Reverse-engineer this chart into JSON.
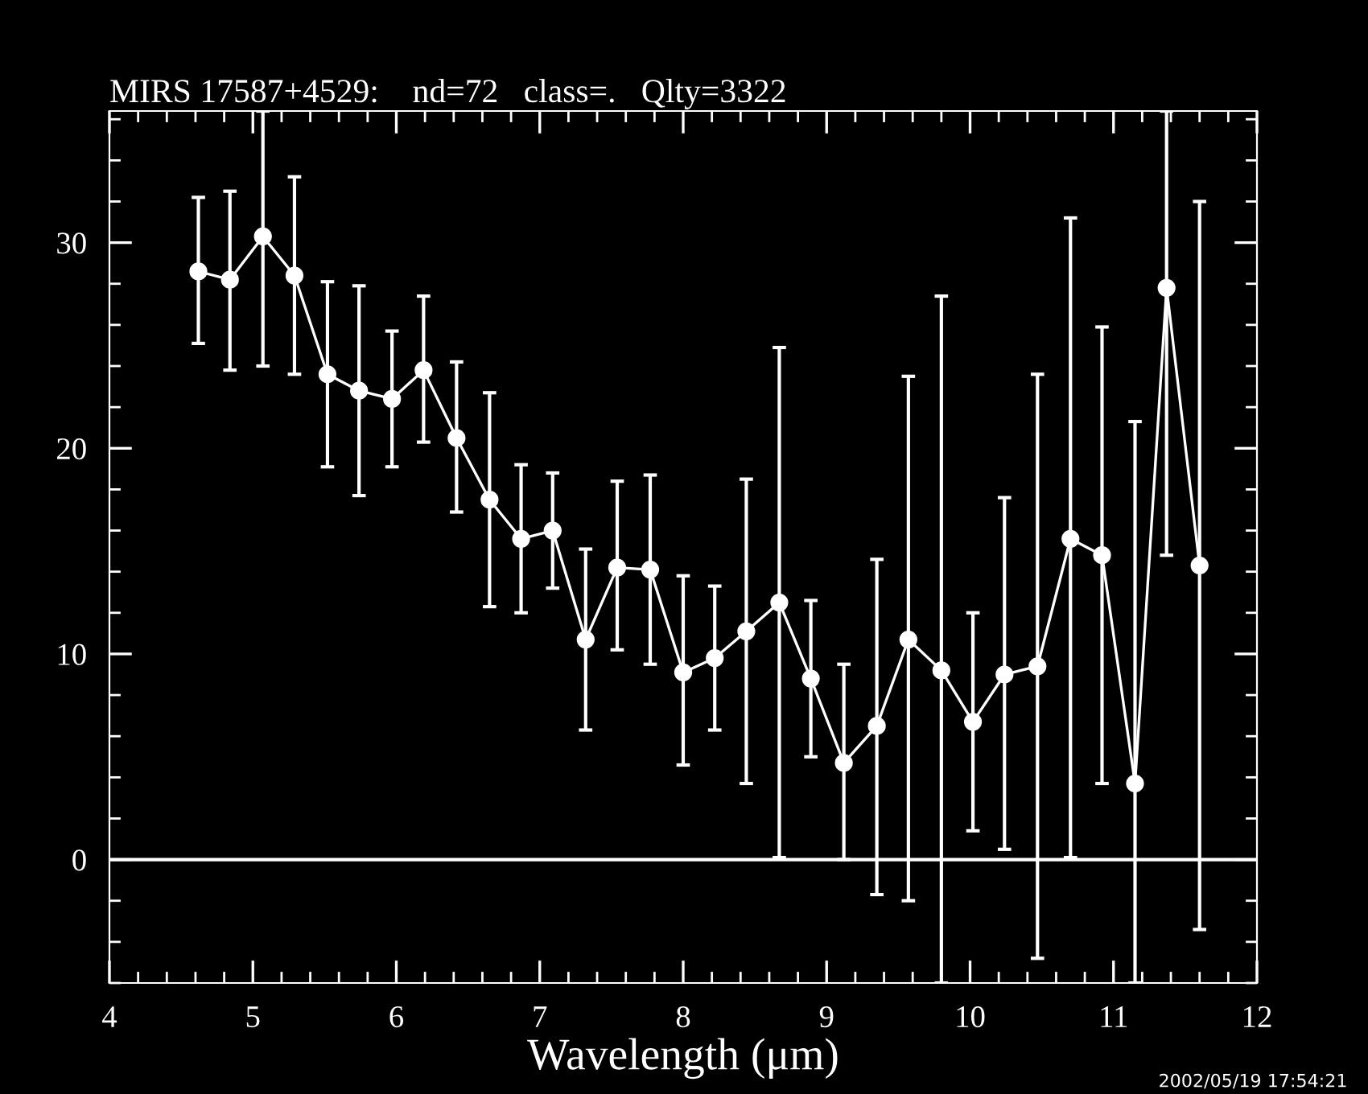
{
  "chart_data": {
    "type": "line",
    "title": "MIRS 17587+4529:    nd=72   class=.   Qlty=3322",
    "xlabel": "Wavelength (μm)",
    "annotations": [
      "2002/05/19 17:54:21"
    ],
    "x": [
      4.62,
      4.84,
      5.07,
      5.29,
      5.52,
      5.74,
      5.97,
      6.19,
      6.42,
      6.65,
      6.87,
      7.09,
      7.32,
      7.54,
      7.77,
      8.0,
      8.22,
      8.44,
      8.67,
      8.89,
      9.12,
      9.35,
      9.57,
      9.8,
      10.02,
      10.24,
      10.47,
      10.7,
      10.92,
      11.15,
      11.37,
      11.6
    ],
    "series": [
      {
        "color": "#ffffff",
        "values": [
          28.6,
          28.2,
          30.3,
          28.4,
          23.6,
          22.8,
          22.4,
          23.8,
          20.5,
          17.5,
          15.6,
          16.0,
          10.7,
          14.2,
          14.1,
          9.1,
          9.8,
          11.1,
          12.5,
          8.8,
          4.7,
          6.5,
          10.7,
          9.2,
          6.7,
          9.0,
          9.4,
          15.6,
          14.8,
          3.7,
          27.8,
          14.3
        ],
        "errors": [
          [
            25.1,
            32.2
          ],
          [
            23.8,
            32.5
          ],
          [
            24.0,
            36.4
          ],
          [
            23.6,
            33.2
          ],
          [
            19.1,
            28.1
          ],
          [
            17.7,
            27.9
          ],
          [
            19.1,
            25.7
          ],
          [
            20.3,
            27.4
          ],
          [
            16.9,
            24.2
          ],
          [
            12.3,
            22.7
          ],
          [
            12.0,
            19.2
          ],
          [
            13.2,
            18.8
          ],
          [
            6.3,
            15.1
          ],
          [
            10.2,
            18.4
          ],
          [
            9.5,
            18.7
          ],
          [
            4.6,
            13.8
          ],
          [
            6.3,
            13.3
          ],
          [
            3.7,
            18.5
          ],
          [
            0.1,
            24.9
          ],
          [
            5.0,
            12.6
          ],
          [
            0.0,
            9.5
          ],
          [
            -1.7,
            14.6
          ],
          [
            -2.0,
            23.5
          ],
          [
            -6.0,
            27.4
          ],
          [
            1.4,
            12.0
          ],
          [
            0.5,
            17.6
          ],
          [
            -4.8,
            23.6
          ],
          [
            0.1,
            31.2
          ],
          [
            3.7,
            25.9
          ],
          [
            -6.0,
            21.3
          ],
          [
            14.8,
            36.4
          ],
          [
            -3.4,
            32.0
          ]
        ]
      }
    ],
    "xlim": [
      4,
      12
    ],
    "xticks": [
      4,
      5,
      6,
      7,
      8,
      9,
      10,
      11,
      12
    ],
    "ylim": [
      -6,
      36.4
    ],
    "yticks": [
      0,
      10,
      20,
      30
    ],
    "ref_lines": [
      {
        "axis": "y",
        "value": 0,
        "color": "#ffffff"
      }
    ],
    "marker": "circle",
    "line_style": "solid",
    "grid": false,
    "legend": false
  }
}
